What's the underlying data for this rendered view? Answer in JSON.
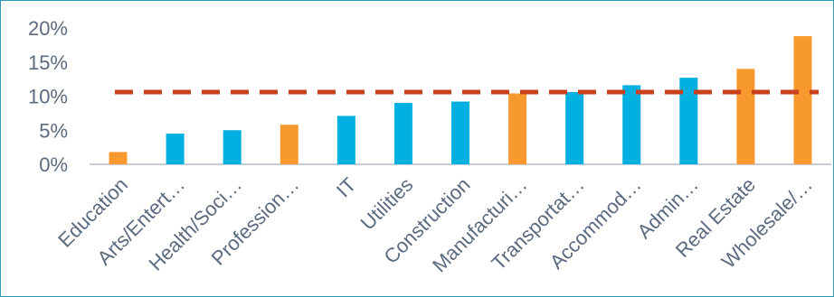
{
  "chart_data": {
    "type": "bar",
    "title": "",
    "xlabel": "",
    "ylabel": "",
    "ylim": [
      0,
      0.2
    ],
    "y_ticks": [
      {
        "value": 0.2,
        "label": "20%"
      },
      {
        "value": 0.15,
        "label": "15%"
      },
      {
        "value": 0.1,
        "label": "10%"
      },
      {
        "value": 0.05,
        "label": "5%"
      },
      {
        "value": 0.0,
        "label": "0%"
      }
    ],
    "categories": [
      "Education",
      "Arts/Entert…",
      "Health/Soci…",
      "Profession…",
      "IT",
      "Utilities",
      "Construction",
      "Manufacturi…",
      "Transportat…",
      "Accommod…",
      "Admin…",
      "Real Estate",
      "Wholesale/…"
    ],
    "values": [
      0.018,
      0.045,
      0.05,
      0.058,
      0.071,
      0.09,
      0.092,
      0.104,
      0.106,
      0.116,
      0.127,
      0.14,
      0.188
    ],
    "highlighted": [
      true,
      false,
      false,
      true,
      false,
      false,
      false,
      true,
      false,
      false,
      false,
      true,
      true
    ],
    "reference_line": {
      "value": 0.106,
      "style": "dashed"
    },
    "grid": false,
    "legend": "none"
  },
  "colors": {
    "bar": "#00b0e0",
    "bar_highlight": "#f7992e",
    "reference_line": "#c8401c",
    "axis": "#c6cdd6",
    "text": "#5b6b7f",
    "border": "#2a9bb3"
  }
}
